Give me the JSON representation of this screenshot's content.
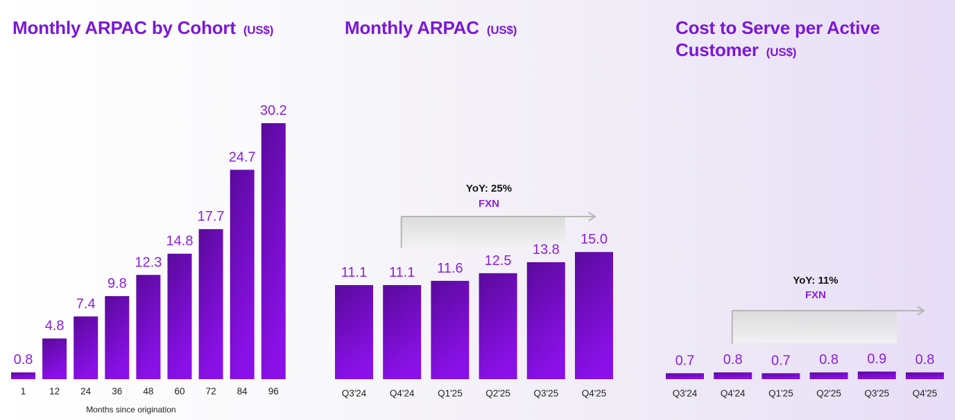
{
  "colors": {
    "accent": "#7c17d8",
    "bar_top": "#5a0a9c",
    "bar_bottom": "#8a10e8",
    "arrow": "#b5b5b5"
  },
  "chart_data": [
    {
      "type": "bar",
      "title": "Monthly ARPAC by Cohort",
      "unit": "(US$)",
      "xlabel": "Months since origination",
      "ylabel": "",
      "categories": [
        "1",
        "12",
        "24",
        "36",
        "48",
        "60",
        "72",
        "84",
        "96"
      ],
      "values": [
        0.8,
        4.8,
        7.4,
        9.8,
        12.3,
        14.8,
        17.7,
        24.7,
        30.2
      ],
      "labels": [
        "0.8",
        "4.8",
        "7.4",
        "9.8",
        "12.3",
        "14.8",
        "17.7",
        "24.7",
        "30.2"
      ],
      "ylim": [
        0,
        30.2
      ]
    },
    {
      "type": "bar",
      "title": "Monthly ARPAC",
      "unit": "(US$)",
      "xlabel": "",
      "ylabel": "",
      "categories": [
        "Q3'24",
        "Q4'24",
        "Q1'25",
        "Q2'25",
        "Q3'25",
        "Q4'25"
      ],
      "values": [
        11.1,
        11.1,
        11.6,
        12.5,
        13.8,
        15.0
      ],
      "labels": [
        "11.1",
        "11.1",
        "11.6",
        "12.5",
        "13.8",
        "15.0"
      ],
      "ylim": [
        0,
        30.2
      ],
      "annotation": {
        "yoy": "YoY: 25%",
        "sub": "FXN",
        "from": "Q4'24",
        "to": "Q4'25"
      }
    },
    {
      "type": "bar",
      "title": "Cost to Serve per Active Customer",
      "unit": "(US$)",
      "xlabel": "",
      "ylabel": "",
      "categories": [
        "Q3'24",
        "Q4'24",
        "Q1'25",
        "Q2'25",
        "Q3'25",
        "Q4'25"
      ],
      "values": [
        0.7,
        0.8,
        0.7,
        0.8,
        0.9,
        0.8
      ],
      "labels": [
        "0.7",
        "0.8",
        "0.7",
        "0.8",
        "0.9",
        "0.8"
      ],
      "ylim": [
        0,
        30.2
      ],
      "annotation": {
        "yoy": "YoY: 11%",
        "sub": "FXN",
        "from": "Q4'24",
        "to": "Q4'25"
      }
    }
  ]
}
